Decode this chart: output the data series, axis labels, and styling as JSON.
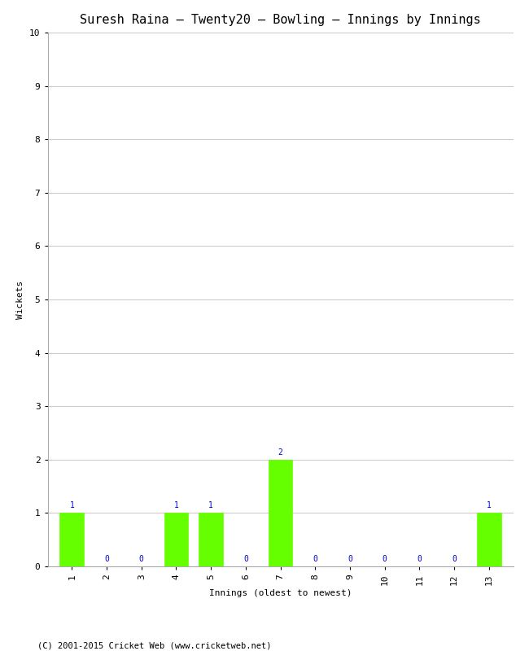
{
  "title": "Suresh Raina – Twenty20 – Bowling – Innings by Innings",
  "xlabel": "Innings (oldest to newest)",
  "ylabel": "Wickets",
  "innings": [
    1,
    2,
    3,
    4,
    5,
    6,
    7,
    8,
    9,
    10,
    11,
    12,
    13
  ],
  "wickets": [
    1,
    0,
    0,
    1,
    1,
    0,
    2,
    0,
    0,
    0,
    0,
    0,
    1
  ],
  "bar_color": "#66ff00",
  "bar_edge_color": "#66ff00",
  "label_color": "#0000cc",
  "ylim": [
    0,
    10
  ],
  "yticks": [
    0,
    1,
    2,
    3,
    4,
    5,
    6,
    7,
    8,
    9,
    10
  ],
  "grid_color": "#cccccc",
  "bg_color": "#ffffff",
  "plot_bg_color": "#ffffff",
  "title_fontsize": 11,
  "axis_label_fontsize": 8,
  "tick_fontsize": 8,
  "bar_label_fontsize": 7,
  "footer": "(C) 2001-2015 Cricket Web (www.cricketweb.net)",
  "footer_fontsize": 7.5
}
